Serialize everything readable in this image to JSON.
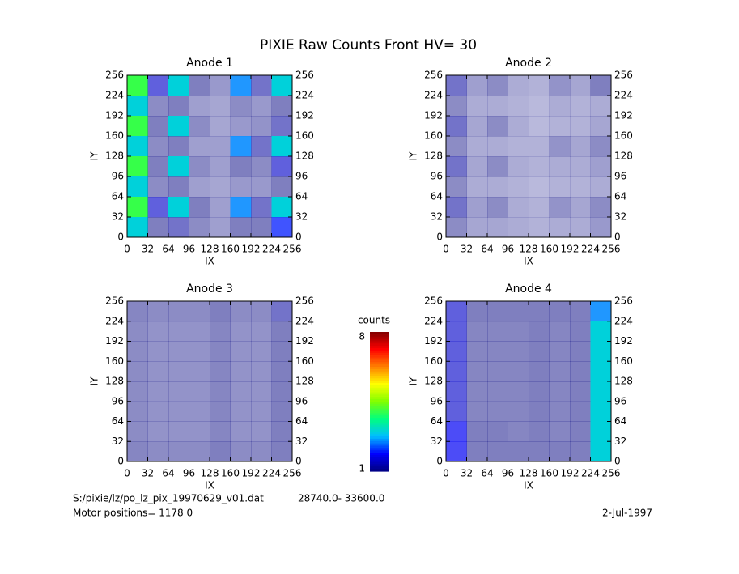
{
  "title": "PIXIE Raw Counts Front HV= 30",
  "colorbar": {
    "label": "counts",
    "clim": [
      1,
      8
    ],
    "ticks": [
      1,
      8
    ],
    "colors": [
      "#00007f",
      "#0000ff",
      "#00bfff",
      "#00ff7f",
      "#7fff00",
      "#ffff00",
      "#ff7f00",
      "#ff0000",
      "#7f0000"
    ]
  },
  "footer": {
    "file": "S:/pixie/lz/po_lz_pix_19970629_v01.dat",
    "range": "28740.0- 33600.0",
    "motor": "Motor positions= 1178 0",
    "date": "2-Jul-1997"
  },
  "chart_data": [
    {
      "type": "heatmap",
      "title": "Anode 1",
      "xlabel": "IX",
      "ylabel": "IY",
      "xlim": [
        0,
        256
      ],
      "ylim": [
        0,
        256
      ],
      "xticks": [
        0,
        32,
        64,
        96,
        128,
        160,
        192,
        224,
        256
      ],
      "yticks": [
        0,
        32,
        64,
        96,
        128,
        160,
        192,
        224,
        256
      ],
      "z": [
        [
          4,
          1.5,
          3,
          1,
          0.6,
          2.5,
          1.2,
          3
        ],
        [
          3,
          0.8,
          1,
          0.5,
          0.4,
          0.8,
          0.6,
          1
        ],
        [
          4,
          1,
          3,
          0.8,
          0.4,
          0.6,
          0.7,
          1.2
        ],
        [
          3,
          0.8,
          1,
          0.5,
          0.5,
          2.5,
          1.2,
          3
        ],
        [
          4,
          1,
          3,
          0.8,
          0.5,
          1,
          0.8,
          1.5
        ],
        [
          3,
          0.8,
          1,
          0.5,
          0.4,
          0.6,
          0.6,
          1
        ],
        [
          4,
          1.5,
          3,
          1,
          0.5,
          2.5,
          1.2,
          3
        ],
        [
          3,
          1,
          1.2,
          0.8,
          0.5,
          1,
          1,
          2
        ]
      ]
    },
    {
      "type": "heatmap",
      "title": "Anode 2",
      "xlabel": "IX",
      "ylabel": "IY",
      "xlim": [
        0,
        256
      ],
      "ylim": [
        0,
        256
      ],
      "xticks": [
        0,
        32,
        64,
        96,
        128,
        160,
        192,
        224,
        256
      ],
      "yticks": [
        0,
        32,
        64,
        96,
        128,
        160,
        192,
        224,
        256
      ],
      "z": [
        [
          1.2,
          0.5,
          0.8,
          0.3,
          0.2,
          0.7,
          0.4,
          1
        ],
        [
          0.8,
          0.3,
          0.3,
          0.2,
          0.1,
          0.3,
          0.2,
          0.3
        ],
        [
          1.2,
          0.4,
          0.8,
          0.3,
          0.1,
          0.2,
          0.2,
          0.4
        ],
        [
          0.8,
          0.3,
          0.3,
          0.2,
          0.2,
          0.7,
          0.4,
          0.8
        ],
        [
          1.2,
          0.4,
          0.8,
          0.3,
          0.2,
          0.3,
          0.3,
          0.5
        ],
        [
          0.8,
          0.3,
          0.3,
          0.2,
          0.1,
          0.2,
          0.2,
          0.3
        ],
        [
          1.2,
          0.5,
          0.8,
          0.3,
          0.2,
          0.7,
          0.4,
          0.8
        ],
        [
          0.8,
          0.4,
          0.4,
          0.3,
          0.2,
          0.3,
          0.3,
          0.6
        ]
      ]
    },
    {
      "type": "heatmap",
      "title": "Anode 3",
      "xlabel": "IX",
      "ylabel": "IY",
      "xlim": [
        0,
        256
      ],
      "ylim": [
        0,
        256
      ],
      "xticks": [
        0,
        32,
        64,
        96,
        128,
        160,
        192,
        224,
        256
      ],
      "yticks": [
        0,
        32,
        64,
        96,
        128,
        160,
        192,
        224,
        256
      ],
      "z": [
        [
          0.9,
          0.8,
          0.8,
          0.8,
          1,
          0.8,
          0.8,
          1.2
        ],
        [
          0.8,
          0.7,
          0.7,
          0.7,
          0.9,
          0.7,
          0.7,
          1
        ],
        [
          0.8,
          0.7,
          0.7,
          0.7,
          0.9,
          0.7,
          0.7,
          1
        ],
        [
          0.8,
          0.7,
          0.7,
          0.7,
          0.9,
          0.7,
          0.7,
          1
        ],
        [
          0.8,
          0.7,
          0.7,
          0.7,
          0.9,
          0.7,
          0.7,
          1
        ],
        [
          0.8,
          0.7,
          0.7,
          0.7,
          0.9,
          0.7,
          0.7,
          1
        ],
        [
          0.8,
          0.7,
          0.7,
          0.7,
          0.9,
          0.7,
          0.7,
          1
        ],
        [
          0.9,
          0.8,
          0.8,
          0.8,
          1,
          0.8,
          0.8,
          1
        ]
      ]
    },
    {
      "type": "heatmap",
      "title": "Anode 4",
      "xlabel": "IX",
      "ylabel": "IY",
      "xlim": [
        0,
        256
      ],
      "ylim": [
        0,
        256
      ],
      "xticks": [
        0,
        32,
        64,
        96,
        128,
        160,
        192,
        224,
        256
      ],
      "yticks": [
        0,
        32,
        64,
        96,
        128,
        160,
        192,
        224,
        256
      ],
      "z": [
        [
          1.5,
          1,
          1,
          1,
          1,
          1,
          1,
          2.5
        ],
        [
          1.5,
          0.9,
          0.9,
          0.9,
          1,
          0.9,
          1,
          3
        ],
        [
          1.5,
          0.9,
          0.9,
          0.9,
          1,
          0.9,
          1,
          3
        ],
        [
          1.5,
          0.9,
          0.9,
          0.9,
          1,
          0.9,
          1,
          3
        ],
        [
          1.5,
          0.9,
          0.9,
          0.9,
          1,
          0.9,
          1,
          3
        ],
        [
          1.5,
          0.9,
          0.9,
          0.9,
          1,
          0.9,
          1,
          3
        ],
        [
          1.8,
          1,
          1,
          0.9,
          1,
          0.9,
          1,
          3
        ],
        [
          1.8,
          1,
          1,
          1,
          1,
          1,
          1,
          3
        ]
      ]
    }
  ]
}
